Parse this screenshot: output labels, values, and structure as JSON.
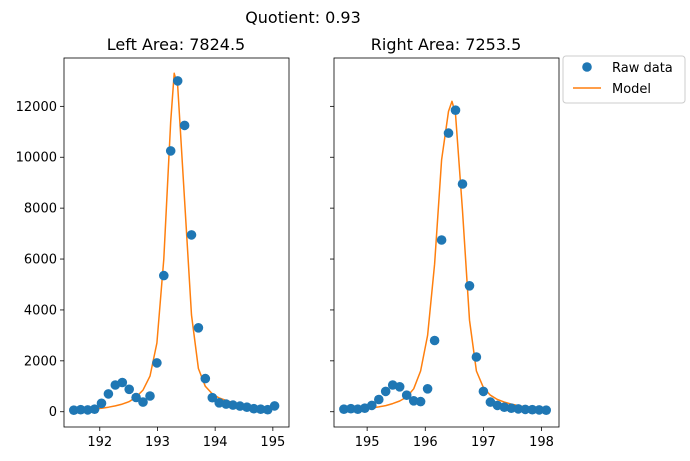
{
  "figure": {
    "suptitle": "Quotient:  0.93"
  },
  "legend": {
    "location": "upper-right outside",
    "entries": [
      {
        "label": "Raw data",
        "marker": "circle",
        "color": "#1f77b4"
      },
      {
        "label": "Model",
        "marker": "line",
        "color": "#ff7f0e"
      }
    ]
  },
  "colors": {
    "raw": "#1f77b4",
    "model": "#ff7f0e"
  },
  "chart_data": [
    {
      "type": "scatter",
      "title": "Left Area:  7824.5",
      "xlabel": "",
      "ylabel": "",
      "xlim": [
        191.38,
        195.28
      ],
      "ylim": [
        -600,
        13900
      ],
      "xticks": [
        192,
        193,
        194,
        195
      ],
      "yticks": [
        0,
        2000,
        4000,
        6000,
        8000,
        10000,
        12000
      ],
      "grid": false,
      "series": [
        {
          "name": "Raw data",
          "type": "scatter",
          "x": [
            191.55,
            191.67,
            191.79,
            191.91,
            192.03,
            192.15,
            192.27,
            192.39,
            192.51,
            192.63,
            192.75,
            192.87,
            192.99,
            193.11,
            193.23,
            193.35,
            193.47,
            193.59,
            193.71,
            193.83,
            193.95,
            194.07,
            194.19,
            194.31,
            194.43,
            194.55,
            194.67,
            194.79,
            194.91,
            195.03
          ],
          "y": [
            60,
            80,
            70,
            100,
            330,
            700,
            1050,
            1150,
            880,
            560,
            380,
            620,
            1920,
            5350,
            10250,
            13000,
            11250,
            6950,
            3300,
            1300,
            550,
            350,
            300,
            260,
            220,
            180,
            120,
            100,
            80,
            230
          ]
        },
        {
          "name": "Model",
          "type": "line",
          "x": [
            191.55,
            191.67,
            191.79,
            191.91,
            192.03,
            192.15,
            192.27,
            192.39,
            192.51,
            192.63,
            192.75,
            192.87,
            192.99,
            193.11,
            193.23,
            193.29,
            193.35,
            193.47,
            193.59,
            193.71,
            193.83,
            193.95,
            194.07,
            194.19,
            194.31,
            194.43,
            194.55,
            194.67,
            194.79,
            194.91,
            195.03
          ],
          "y": [
            60,
            80,
            90,
            110,
            140,
            180,
            230,
            300,
            400,
            580,
            850,
            1400,
            2700,
            6000,
            11400,
            13300,
            12800,
            8300,
            3800,
            1700,
            1000,
            700,
            540,
            440,
            360,
            300,
            250,
            210,
            180,
            150,
            120
          ]
        }
      ]
    },
    {
      "type": "scatter",
      "title": "Right Area:  7253.5",
      "xlabel": "",
      "ylabel": "",
      "xlim": [
        194.43,
        198.3
      ],
      "ylim": [
        -600,
        13900
      ],
      "xticks": [
        195,
        196,
        197,
        198
      ],
      "yticks": [
        0,
        2000,
        4000,
        6000,
        8000,
        10000,
        12000
      ],
      "grid": false,
      "series": [
        {
          "name": "Raw data",
          "type": "scatter",
          "x": [
            194.6,
            194.72,
            194.84,
            194.96,
            195.08,
            195.2,
            195.32,
            195.44,
            195.56,
            195.68,
            195.8,
            195.92,
            196.04,
            196.16,
            196.28,
            196.4,
            196.52,
            196.64,
            196.76,
            196.88,
            197.0,
            197.12,
            197.24,
            197.36,
            197.48,
            197.6,
            197.72,
            197.84,
            197.96,
            198.08
          ],
          "y": [
            100,
            120,
            100,
            140,
            250,
            480,
            800,
            1050,
            980,
            650,
            430,
            400,
            900,
            2800,
            6750,
            10950,
            11850,
            8950,
            4950,
            2150,
            800,
            380,
            250,
            180,
            140,
            110,
            90,
            80,
            70,
            60
          ]
        },
        {
          "name": "Model",
          "type": "line",
          "x": [
            194.6,
            194.72,
            194.84,
            194.96,
            195.08,
            195.2,
            195.32,
            195.44,
            195.56,
            195.68,
            195.8,
            195.92,
            196.04,
            196.16,
            196.28,
            196.4,
            196.46,
            196.52,
            196.64,
            196.76,
            196.88,
            197.0,
            197.12,
            197.24,
            197.36,
            197.48,
            197.6,
            197.72,
            197.84,
            197.96,
            198.08
          ],
          "y": [
            60,
            80,
            100,
            120,
            150,
            190,
            240,
            320,
            420,
            580,
            900,
            1600,
            3000,
            5800,
            9900,
            11800,
            12200,
            11700,
            7900,
            3600,
            1600,
            950,
            650,
            480,
            380,
            300,
            240,
            190,
            160,
            130,
            100
          ]
        }
      ]
    }
  ]
}
